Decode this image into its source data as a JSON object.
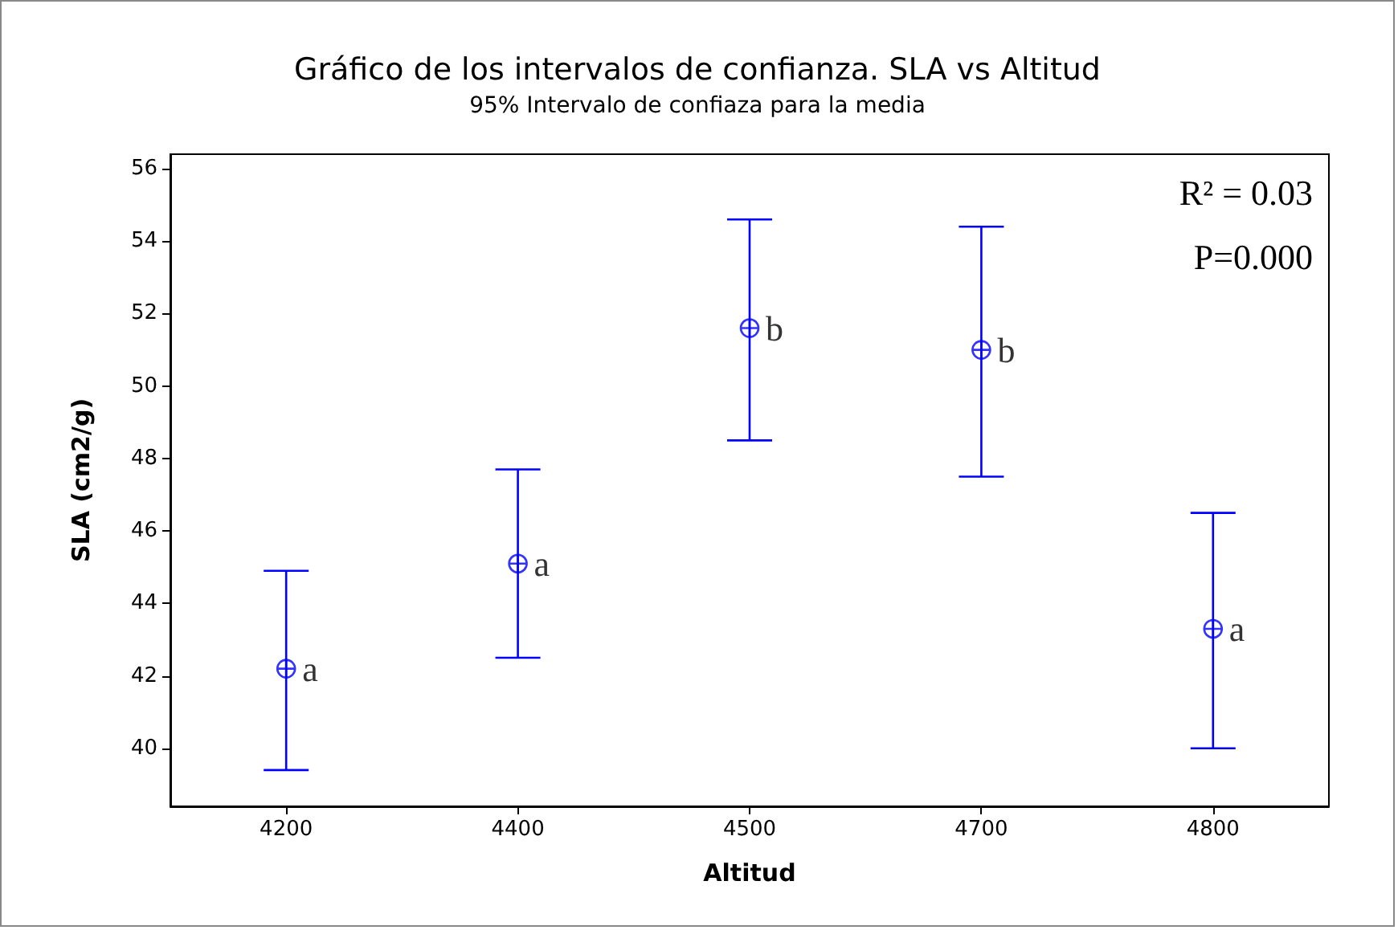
{
  "chart_data": {
    "type": "scatter",
    "title": "Gráfico de los intervalos de confianza. SLA vs Altitud",
    "subtitle": "95% Intervalo de confiaza para la media",
    "xlabel": "Altitud",
    "ylabel": "SLA (cm2/g)",
    "categories": [
      "4200",
      "4400",
      "4500",
      "4700",
      "4800"
    ],
    "values": [
      42.2,
      45.1,
      51.6,
      51.0,
      43.3
    ],
    "errors": [
      [
        39.4,
        44.9
      ],
      [
        42.5,
        47.7
      ],
      [
        48.5,
        54.6
      ],
      [
        47.5,
        54.4
      ],
      [
        40.0,
        46.5
      ]
    ],
    "color": "#0000ff",
    "grid": false,
    "ylim": [
      38.4,
      56.4
    ],
    "yticks": [
      40,
      42,
      44,
      46,
      48,
      50,
      52,
      54,
      56
    ],
    "annotations": [
      {
        "text": "a",
        "x": "4200",
        "y": 42.2
      },
      {
        "text": "a",
        "x": "4400",
        "y": 45.1
      },
      {
        "text": "b",
        "x": "4500",
        "y": 51.6
      },
      {
        "text": "b",
        "x": "4700",
        "y": 51.0
      },
      {
        "text": "a",
        "x": "4800",
        "y": 43.3
      },
      "R² = 0.03",
      "P=0.000"
    ]
  }
}
